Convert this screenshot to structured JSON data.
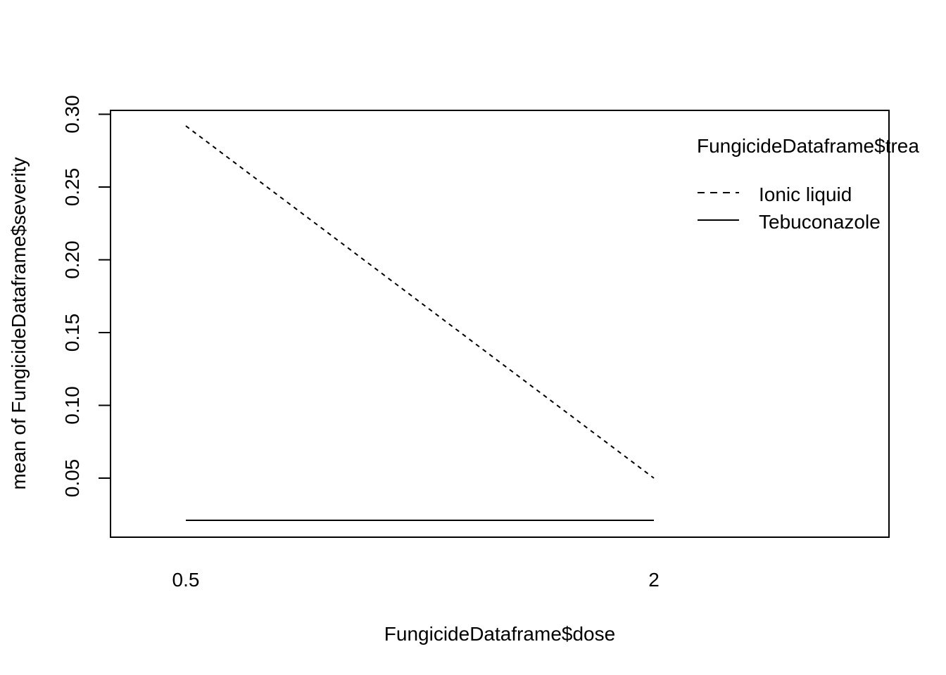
{
  "chart_data": {
    "type": "line",
    "title": "",
    "xlabel": "FungicideDataframe$dose",
    "ylabel": "mean of  FungicideDataframe$severity",
    "categories": [
      "0.5",
      "2"
    ],
    "ylim": [
      0.02,
      0.3
    ],
    "yticks": [
      "0.05",
      "0.10",
      "0.15",
      "0.20",
      "0.25",
      "0.30"
    ],
    "grid": false,
    "legend": {
      "title": "FungicideDataframe$trea",
      "placement": "top-right"
    },
    "series": [
      {
        "name": "Ionic liquid",
        "line_style": "dashed",
        "color": "#000000",
        "values": [
          0.292,
          0.05
        ]
      },
      {
        "name": "Tebuconazole",
        "line_style": "solid",
        "color": "#000000",
        "values": [
          0.021,
          0.021
        ]
      }
    ]
  }
}
